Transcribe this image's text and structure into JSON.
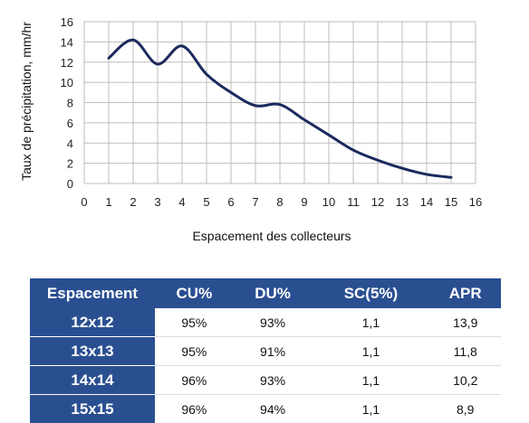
{
  "chart_data": {
    "type": "line",
    "xlabel": "Espacement des collecteurs",
    "ylabel": "Taux de précipitation, mm/hr",
    "xlim": [
      0,
      16
    ],
    "ylim": [
      0,
      16
    ],
    "x_ticks": [
      0,
      1,
      2,
      3,
      4,
      5,
      6,
      7,
      8,
      9,
      10,
      11,
      12,
      13,
      14,
      15,
      16
    ],
    "y_ticks": [
      0,
      2,
      4,
      6,
      8,
      10,
      12,
      14,
      16
    ],
    "grid": true,
    "series": [
      {
        "color": "#1b2a5e",
        "x": [
          1,
          2,
          3,
          4,
          5,
          6,
          7,
          8,
          9,
          10,
          11,
          12,
          13,
          14,
          15
        ],
        "y": [
          12.4,
          14.2,
          11.8,
          13.6,
          10.8,
          9.0,
          7.7,
          7.8,
          6.3,
          4.8,
          3.3,
          2.3,
          1.5,
          0.9,
          0.6
        ]
      }
    ]
  },
  "table": {
    "headers": [
      "Espacement",
      "CU%",
      "DU%",
      "SC(5%)",
      "APR"
    ],
    "rows": [
      [
        "12x12",
        "95%",
        "93%",
        "1,1",
        "13,9"
      ],
      [
        "13x13",
        "95%",
        "91%",
        "1,1",
        "11,8"
      ],
      [
        "14x14",
        "96%",
        "93%",
        "1,1",
        "10,2"
      ],
      [
        "15x15",
        "96%",
        "94%",
        "1,1",
        "8,9"
      ]
    ]
  },
  "colors": {
    "header_bg": "#2a4f91",
    "line": "#1b2a5e",
    "grid": "#bdbdbd"
  }
}
